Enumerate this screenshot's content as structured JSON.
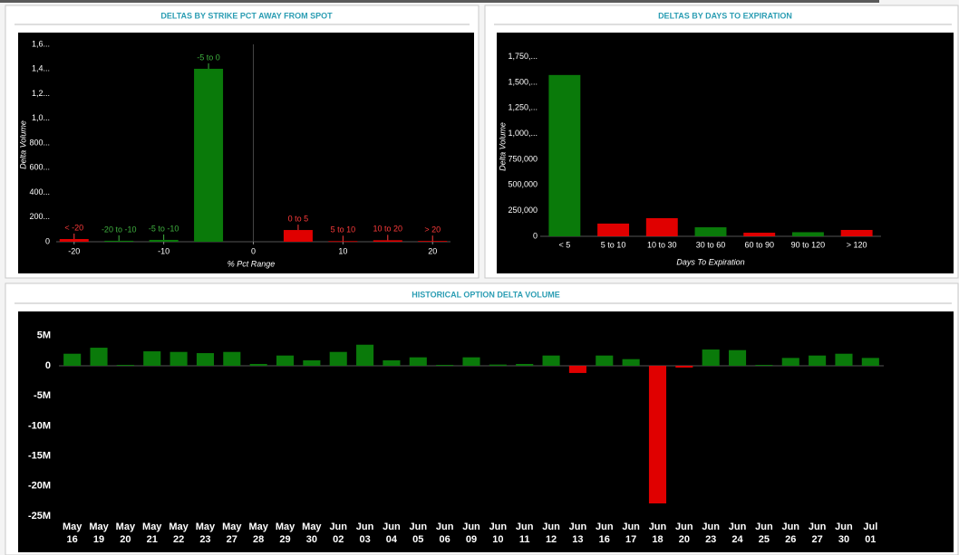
{
  "chart_data": [
    {
      "type": "bar",
      "title": "DELTAS BY STRIKE PCT AWAY FROM SPOT",
      "x": [
        -20,
        -15,
        -10,
        -5,
        5,
        10,
        15,
        20
      ],
      "bar_labels": [
        "< -20",
        "-20 to -10",
        "-5 to -10",
        "-5 to 0",
        "0 to 5",
        "5 to 10",
        "10 to 20",
        "> 20"
      ],
      "values": [
        22,
        8,
        15,
        1402,
        95,
        5,
        12,
        6
      ],
      "colors": [
        "#e00000",
        "#0a7a0a",
        "#0a7a0a",
        "#0a7a0a",
        "#e00000",
        "#e00000",
        "#e00000",
        "#e00000"
      ],
      "label_colors": [
        "#ff3b3b",
        "#3fb13f",
        "#3fb13f",
        "#3fb13f",
        "#ff3b3b",
        "#ff3b3b",
        "#ff3b3b",
        "#ff3b3b"
      ],
      "xlim": [
        -22,
        22
      ],
      "xticks": [
        -20,
        -10,
        0,
        10,
        20
      ],
      "ylim": [
        0,
        1600
      ],
      "yticks": [
        0,
        {
          "value": 200,
          "label": "200..."
        },
        {
          "value": 400,
          "label": "400..."
        },
        {
          "value": 600,
          "label": "600..."
        },
        {
          "value": 800,
          "label": "800..."
        },
        {
          "value": 1000,
          "label": "1,0..."
        },
        {
          "value": 1200,
          "label": "1,2..."
        },
        {
          "value": 1400,
          "label": "1,4..."
        },
        {
          "value": 1600,
          "label": "1,6..."
        }
      ],
      "y_label": "Delta Volume",
      "x_label": "% Pct Range"
    },
    {
      "type": "bar",
      "title": "DELTAS BY DAYS TO EXPIRATION",
      "categories": [
        "< 5",
        "5 to 10",
        "10 to 30",
        "30 to 60",
        "60 to 90",
        "90 to 120",
        "> 120"
      ],
      "values": [
        1572000,
        124000,
        177000,
        88000,
        35000,
        40000,
        62000
      ],
      "colors": [
        "#0a7a0a",
        "#e00000",
        "#e00000",
        "#0a7a0a",
        "#e00000",
        "#0a7a0a",
        "#e00000"
      ],
      "ylim": [
        0,
        1800000
      ],
      "yticks": [
        0,
        {
          "value": 250000,
          "label": "250,000"
        },
        {
          "value": 500000,
          "label": "500,000"
        },
        {
          "value": 750000,
          "label": "750,000"
        },
        {
          "value": 1000000,
          "label": "1,000,..."
        },
        {
          "value": 1250000,
          "label": "1,250,..."
        },
        {
          "value": 1500000,
          "label": "1,500,..."
        },
        {
          "value": 1750000,
          "label": "1,750,..."
        }
      ],
      "y_label": "Delta Volume",
      "x_label": "Days To Expiration"
    },
    {
      "type": "bar",
      "title": "HISTORICAL OPTION DELTA VOLUME",
      "categories": [
        [
          "May",
          "16"
        ],
        [
          "May",
          "19"
        ],
        [
          "May",
          "20"
        ],
        [
          "May",
          "21"
        ],
        [
          "May",
          "22"
        ],
        [
          "May",
          "23"
        ],
        [
          "May",
          "27"
        ],
        [
          "May",
          "28"
        ],
        [
          "May",
          "29"
        ],
        [
          "May",
          "30"
        ],
        [
          "Jun",
          "02"
        ],
        [
          "Jun",
          "03"
        ],
        [
          "Jun",
          "04"
        ],
        [
          "Jun",
          "05"
        ],
        [
          "Jun",
          "06"
        ],
        [
          "Jun",
          "09"
        ],
        [
          "Jun",
          "10"
        ],
        [
          "Jun",
          "11"
        ],
        [
          "Jun",
          "12"
        ],
        [
          "Jun",
          "13"
        ],
        [
          "Jun",
          "16"
        ],
        [
          "Jun",
          "17"
        ],
        [
          "Jun",
          "18"
        ],
        [
          "Jun",
          "20"
        ],
        [
          "Jun",
          "23"
        ],
        [
          "Jun",
          "24"
        ],
        [
          "Jun",
          "25"
        ],
        [
          "Jun",
          "26"
        ],
        [
          "Jun",
          "27"
        ],
        [
          "Jun",
          "30"
        ],
        [
          "Jul",
          "01"
        ]
      ],
      "values": [
        2000000,
        3000000,
        150000,
        2400000,
        2300000,
        2100000,
        2300000,
        300000,
        1700000,
        900000,
        2300000,
        3500000,
        900000,
        1400000,
        150000,
        1400000,
        200000,
        300000,
        1700000,
        -1200000,
        1700000,
        1100000,
        -22900000,
        -300000,
        2700000,
        2600000,
        150000,
        1300000,
        1700000,
        2000000,
        1300000
      ],
      "positive_color": "#0a7a0a",
      "negative_color": "#e00000",
      "ylim": [
        -26000000,
        7000000
      ],
      "yticks": [
        {
          "value": -25000000,
          "label": "-25M"
        },
        {
          "value": -20000000,
          "label": "-20M"
        },
        {
          "value": -15000000,
          "label": "-15M"
        },
        {
          "value": -10000000,
          "label": "-10M"
        },
        {
          "value": -5000000,
          "label": "-5M"
        },
        0,
        {
          "value": 5000000,
          "label": "5M"
        }
      ]
    }
  ]
}
